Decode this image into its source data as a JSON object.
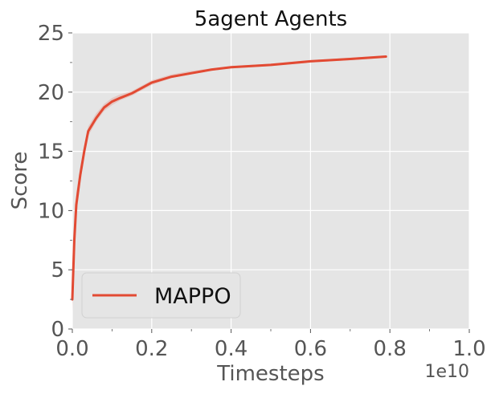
{
  "chart_data": {
    "type": "line",
    "title": "5agent Agents",
    "xlabel": "Timesteps",
    "ylabel": "Score",
    "x_offset_label": "1e10",
    "xlim": [
      0.0,
      1.0
    ],
    "ylim": [
      0,
      25
    ],
    "x_ticks": [
      0.0,
      0.2,
      0.4,
      0.6,
      0.8,
      1.0
    ],
    "x_tick_labels": [
      "0.0",
      "0.2",
      "0.4",
      "0.6",
      "0.8",
      "1.0"
    ],
    "y_ticks": [
      0,
      5,
      10,
      15,
      20,
      25
    ],
    "y_tick_labels": [
      "0",
      "5",
      "10",
      "15",
      "20",
      "25"
    ],
    "grid": true,
    "legend_position": "lower-left",
    "series": [
      {
        "name": "MAPPO",
        "color": "#E24A33",
        "x": [
          0.0,
          0.005,
          0.01,
          0.02,
          0.03,
          0.04,
          0.06,
          0.08,
          0.1,
          0.12,
          0.15,
          0.2,
          0.25,
          0.3,
          0.35,
          0.4,
          0.5,
          0.6,
          0.7,
          0.79
        ],
        "y": [
          2.5,
          7.5,
          10.5,
          13.0,
          15.0,
          16.7,
          17.8,
          18.7,
          19.2,
          19.5,
          19.9,
          20.8,
          21.3,
          21.6,
          21.9,
          22.1,
          22.3,
          22.6,
          22.8,
          23.0
        ],
        "band_low": [
          1.5,
          6.5,
          9.5,
          12.3,
          14.5,
          16.3,
          17.5,
          18.4,
          18.9,
          19.3,
          19.7,
          20.6,
          21.2,
          21.5,
          21.8,
          22.0,
          22.2,
          22.5,
          22.7,
          22.9
        ],
        "band_high": [
          3.5,
          8.5,
          11.5,
          13.7,
          15.5,
          17.1,
          18.2,
          19.0,
          19.5,
          19.8,
          20.1,
          21.0,
          21.5,
          21.8,
          22.0,
          22.2,
          22.4,
          22.7,
          22.9,
          23.1
        ]
      }
    ]
  }
}
